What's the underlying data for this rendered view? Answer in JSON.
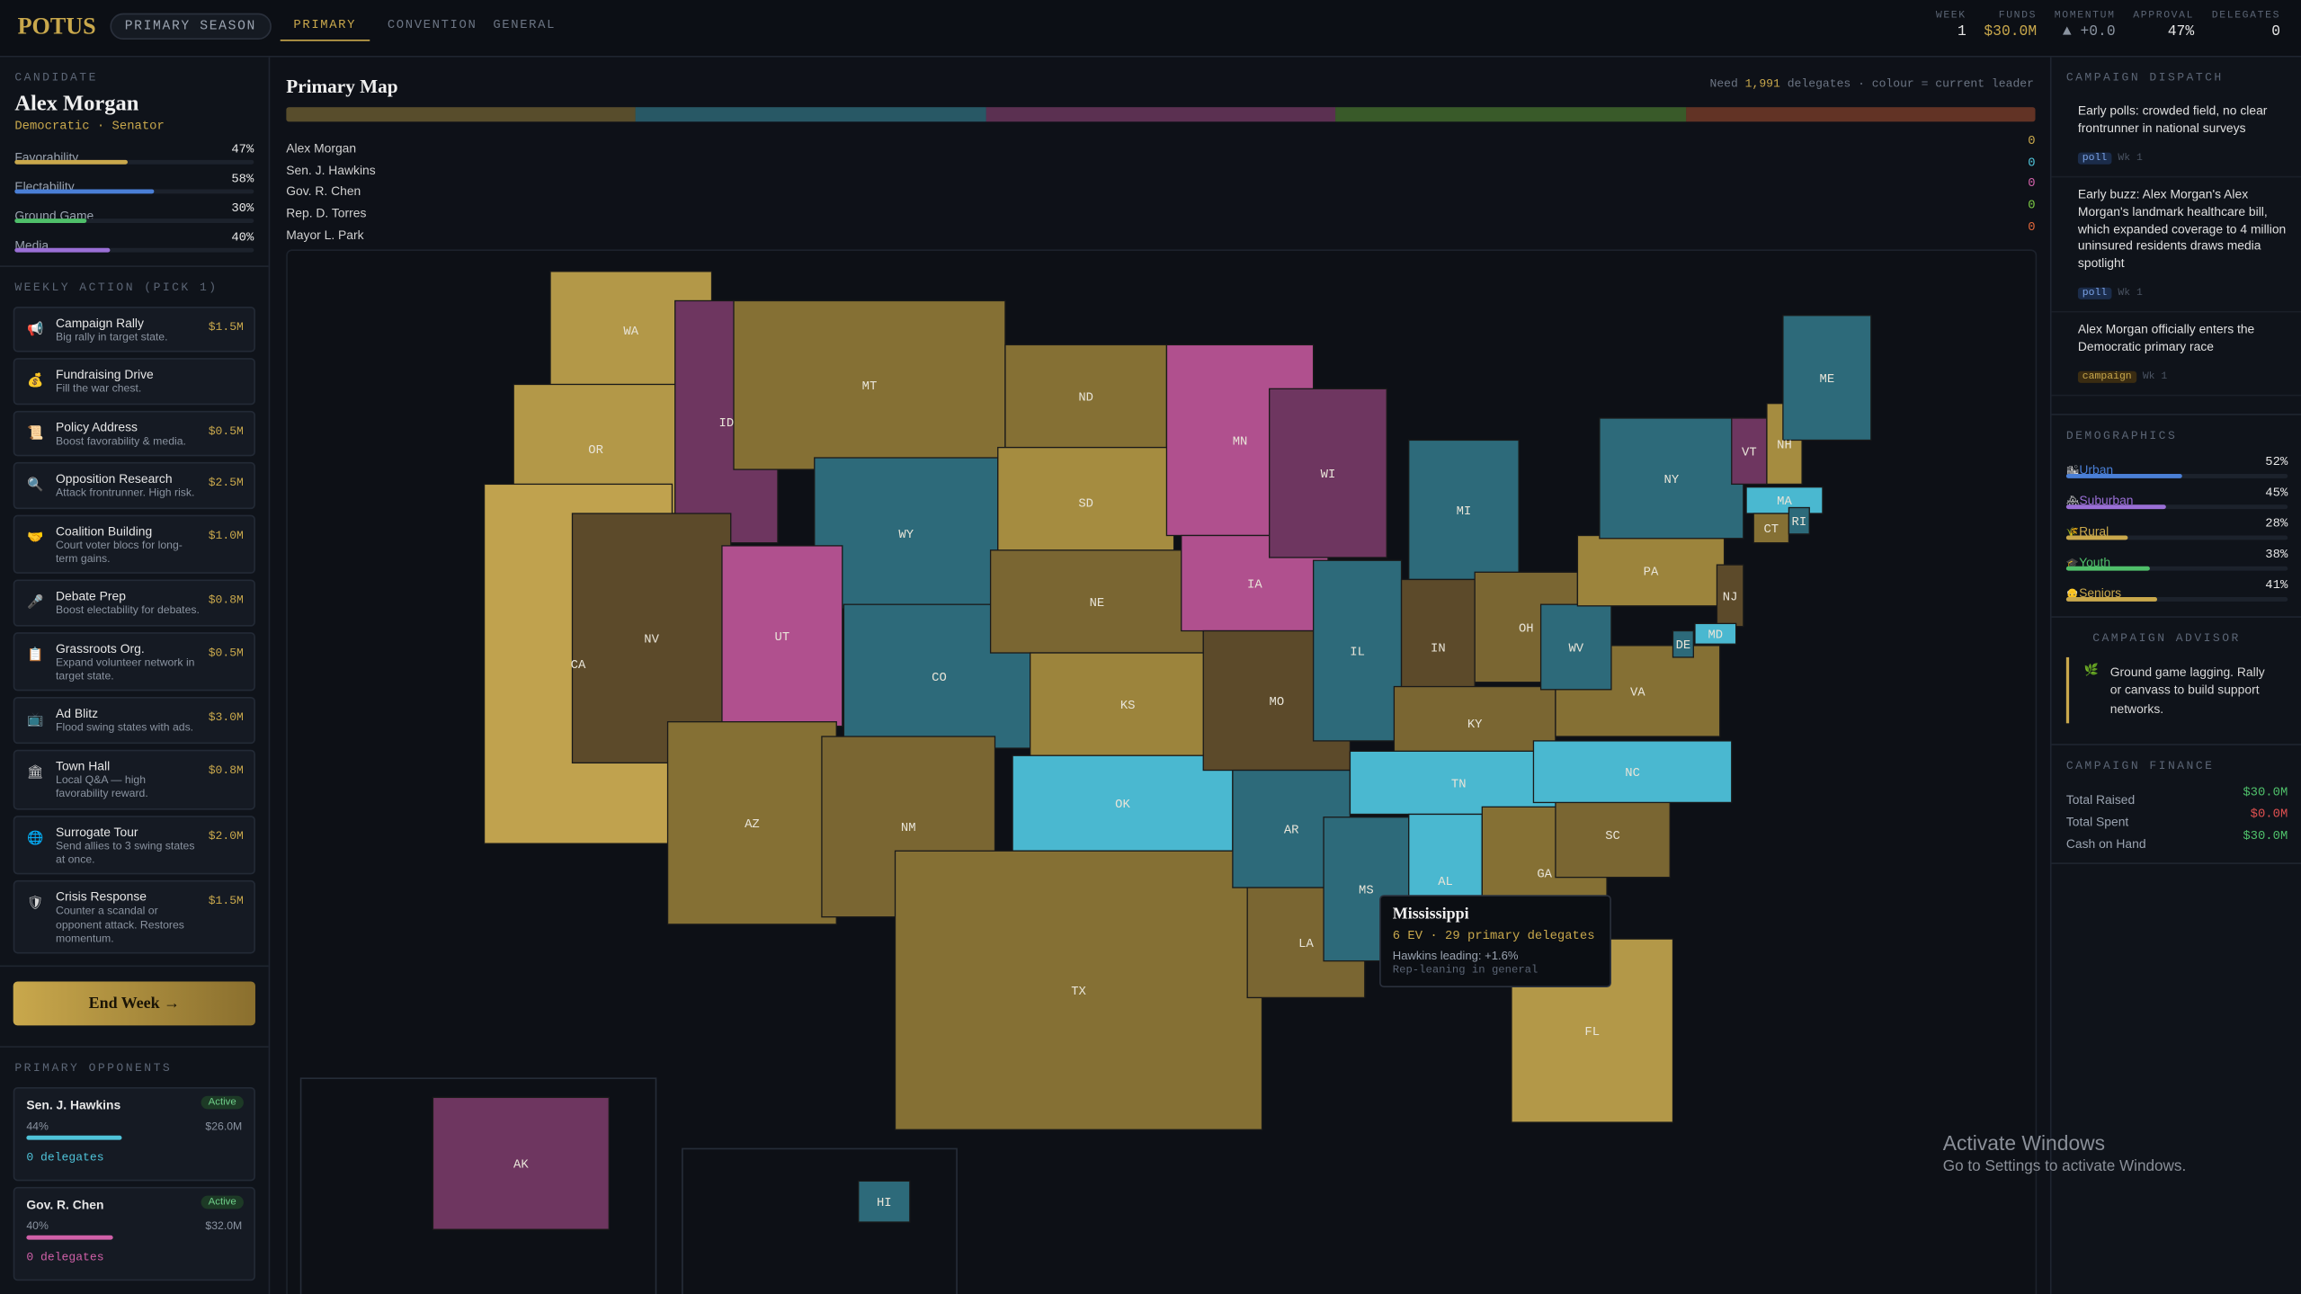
{
  "header": {
    "logo": "POTUS",
    "season": "PRIMARY SEASON",
    "tabs": [
      "PRIMARY",
      "CONVENTION",
      "GENERAL"
    ],
    "stats": [
      {
        "label": "WEEK",
        "value": "1"
      },
      {
        "label": "FUNDS",
        "value": "$30.0M"
      },
      {
        "label": "MOMENTUM",
        "value": "▲ +0.0"
      },
      {
        "label": "APPROVAL",
        "value": "47%"
      },
      {
        "label": "DELEGATES",
        "value": "0"
      }
    ]
  },
  "candidate": {
    "section": "CANDIDATE",
    "name": "Alex Morgan",
    "role": "Democratic · Senator",
    "attributes": [
      {
        "label": "Favorability",
        "value": "47%",
        "color": "#c9a84c"
      },
      {
        "label": "Electability",
        "value": "58%",
        "color": "#4a7fd6"
      },
      {
        "label": "Ground Game",
        "value": "30%",
        "color": "#4fbf6a"
      },
      {
        "label": "Media",
        "value": "40%",
        "color": "#9a6fd6"
      }
    ]
  },
  "actions": {
    "section": "WEEKLY ACTION (PICK 1)",
    "items": [
      {
        "icon": "📢",
        "title": "Campaign Rally",
        "desc": "Big rally in target state.",
        "cost": "$1.5M"
      },
      {
        "icon": "💰",
        "title": "Fundraising Drive",
        "desc": "Fill the war chest."
      },
      {
        "icon": "📜",
        "title": "Policy Address",
        "desc": "Boost favorability & media.",
        "cost": "$0.5M"
      },
      {
        "icon": "🔍",
        "title": "Opposition Research",
        "desc": "Attack frontrunner. High risk.",
        "cost": "$2.5M"
      },
      {
        "icon": "🤝",
        "title": "Coalition Building",
        "desc": "Court voter blocs for long-term gains.",
        "cost": "$1.0M"
      },
      {
        "icon": "🎤",
        "title": "Debate Prep",
        "desc": "Boost electability for debates.",
        "cost": "$0.8M"
      },
      {
        "icon": "📋",
        "title": "Grassroots Org.",
        "desc": "Expand volunteer network in target state.",
        "cost": "$0.5M"
      },
      {
        "icon": "📺",
        "title": "Ad Blitz",
        "desc": "Flood swing states with ads.",
        "cost": "$3.0M"
      },
      {
        "icon": "🏛",
        "title": "Town Hall",
        "desc": "Local Q&A — high favorability reward.",
        "cost": "$0.8M"
      },
      {
        "icon": "🌐",
        "title": "Surrogate Tour",
        "desc": "Send allies to 3 swing states at once.",
        "cost": "$2.0M"
      },
      {
        "icon": "🛡",
        "title": "Crisis Response",
        "desc": "Counter a scandal or opponent attack. Restores momentum.",
        "cost": "$1.5M"
      }
    ],
    "end_week": "End Week →"
  },
  "opponents": {
    "section": "PRIMARY OPPONENTS",
    "items": [
      {
        "name": "Sen. J. Hawkins",
        "status": "Active",
        "poll": "44%",
        "funds": "$26.0M",
        "delegates": "0 delegates",
        "color": "#4fc3d9"
      },
      {
        "name": "Gov. R. Chen",
        "status": "Active",
        "poll": "40%",
        "funds": "$32.0M",
        "delegates": "0 delegates",
        "color": "#d060a8"
      }
    ]
  },
  "map": {
    "title": "Primary Map",
    "need_prefix": "Need",
    "need_value": "1,991",
    "need_suffix": "delegates · colour = current leader",
    "candidates": [
      {
        "name": "Alex Morgan",
        "delegates": "0",
        "color": "#c9a84c"
      },
      {
        "name": "Sen. J. Hawkins",
        "delegates": "0",
        "color": "#4fc3d9"
      },
      {
        "name": "Gov. R. Chen",
        "delegates": "0",
        "color": "#d060a8"
      },
      {
        "name": "Rep. D. Torres",
        "delegates": "0",
        "color": "#7ac943"
      },
      {
        "name": "Mayor L. Park",
        "delegates": "0",
        "color": "#e0663a"
      }
    ],
    "states": [
      {
        "label": "WA",
        "color": "#b39848"
      },
      {
        "label": "OR",
        "color": "#b39848"
      },
      {
        "label": "CA",
        "color": "#c0a24e"
      },
      {
        "label": "ID",
        "color": "#6e3660"
      },
      {
        "label": "NV",
        "color": "#5c4a2a"
      },
      {
        "label": "MT",
        "color": "#857034"
      },
      {
        "label": "WY",
        "color": "#2d6a7a"
      },
      {
        "label": "UT",
        "color": "#b0508e"
      },
      {
        "label": "AZ",
        "color": "#857034"
      },
      {
        "label": "CO",
        "color": "#2d6a7a"
      },
      {
        "label": "NM",
        "color": "#7a6632"
      },
      {
        "label": "ND",
        "color": "#857034"
      },
      {
        "label": "SD",
        "color": "#a58c40"
      },
      {
        "label": "NE",
        "color": "#7a6632"
      },
      {
        "label": "KS",
        "color": "#9c843c"
      },
      {
        "label": "OK",
        "color": "#4ab8d0"
      },
      {
        "label": "TX",
        "color": "#857034"
      },
      {
        "label": "MN",
        "color": "#b0508e"
      },
      {
        "label": "IA",
        "color": "#b0508e"
      },
      {
        "label": "MO",
        "color": "#5c4a2a"
      },
      {
        "label": "AR",
        "color": "#2d6a7a"
      },
      {
        "label": "LA",
        "color": "#7a6632"
      },
      {
        "label": "WI",
        "color": "#6e3660"
      },
      {
        "label": "IL",
        "color": "#2d6a7a"
      },
      {
        "label": "MI",
        "color": "#2d6a7a"
      },
      {
        "label": "IN",
        "color": "#5c4a2a"
      },
      {
        "label": "OH",
        "color": "#7a6632"
      },
      {
        "label": "KY",
        "color": "#7a6632"
      },
      {
        "label": "TN",
        "color": "#4ab8d0"
      },
      {
        "label": "MS",
        "color": "#2d6a7a"
      },
      {
        "label": "AL",
        "color": "#4ab8d0"
      },
      {
        "label": "GA",
        "color": "#857034"
      },
      {
        "label": "FL",
        "color": "#b39848"
      },
      {
        "label": "SC",
        "color": "#7a6632"
      },
      {
        "label": "NC",
        "color": "#4ab8d0"
      },
      {
        "label": "VA",
        "color": "#857034"
      },
      {
        "label": "WV",
        "color": "#2d6a7a"
      },
      {
        "label": "PA",
        "color": "#9c843c"
      },
      {
        "label": "NY",
        "color": "#2d6a7a"
      },
      {
        "label": "VT",
        "color": "#6e3660"
      },
      {
        "label": "NH",
        "color": "#a58c40"
      },
      {
        "label": "ME",
        "color": "#2d6a7a"
      },
      {
        "label": "MA",
        "color": "#4ab8d0"
      },
      {
        "label": "CT",
        "color": "#857034"
      },
      {
        "label": "RI",
        "color": "#2d6a7a"
      },
      {
        "label": "NJ",
        "color": "#5c4a2a"
      },
      {
        "label": "DE",
        "color": "#2d6a7a"
      },
      {
        "label": "MD",
        "color": "#4ab8d0"
      },
      {
        "label": "AK",
        "color": "#6e3660"
      },
      {
        "label": "HI",
        "color": "#2d6a7a"
      }
    ],
    "tooltip": {
      "title": "Mississippi",
      "line1": "6 EV · 29 primary delegates",
      "line2": "Hawkins leading: +1.6%",
      "line3": "Rep-leaning in general"
    }
  },
  "dispatch": {
    "section": "CAMPAIGN DISPATCH",
    "items": [
      {
        "text": "Early polls: crowded field, no clear frontrunner in national surveys",
        "tag": "poll",
        "week": "Wk 1"
      },
      {
        "text": "Early buzz: Alex Morgan's Alex Morgan's landmark healthcare bill, which expanded coverage to 4 million uninsured residents draws media spotlight",
        "tag": "poll",
        "week": "Wk 1"
      },
      {
        "text": "Alex Morgan officially enters the Democratic primary race",
        "tag": "campaign",
        "week": "Wk 1"
      }
    ]
  },
  "demographics": {
    "section": "DEMOGRAPHICS",
    "items": [
      {
        "icon": "🏙",
        "label": "Urban",
        "value": "52%",
        "color": "#4a7fd6"
      },
      {
        "icon": "🏘",
        "label": "Suburban",
        "value": "45%",
        "color": "#9a6fd6"
      },
      {
        "icon": "🌾",
        "label": "Rural",
        "value": "28%",
        "color": "#c9a84c"
      },
      {
        "icon": "🎓",
        "label": "Youth",
        "value": "38%",
        "color": "#4fbf6a"
      },
      {
        "icon": "👴",
        "label": "Seniors",
        "value": "41%",
        "color": "#c9a84c"
      }
    ]
  },
  "advisor": {
    "section": "CAMPAIGN ADVISOR",
    "icon": "🌿",
    "text": "Ground game lagging. Rally or canvass to build support networks."
  },
  "finance": {
    "section": "CAMPAIGN FINANCE",
    "items": [
      {
        "label": "Total Raised",
        "value": "$30.0M",
        "color": "#4fbf6a"
      },
      {
        "label": "Total Spent",
        "value": "$0.0M",
        "color": "#e05050"
      },
      {
        "label": "Cash on Hand",
        "value": "$30.0M",
        "color": "#4fbf6a"
      }
    ]
  },
  "watermark": {
    "title": "Activate Windows",
    "subtitle": "Go to Settings to activate Windows."
  }
}
